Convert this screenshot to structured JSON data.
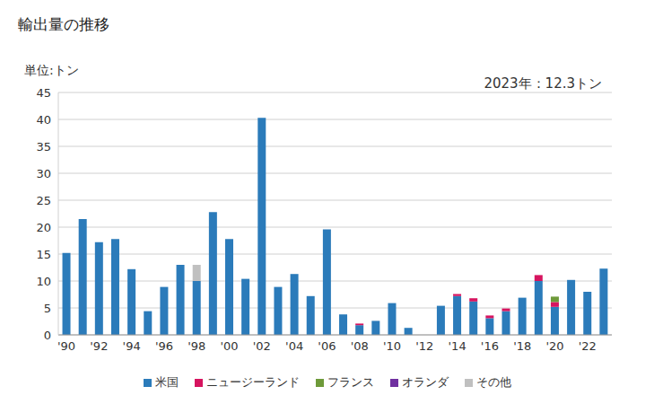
{
  "chart_data": {
    "type": "bar",
    "title": "輸出量の推移",
    "subtitle": "単位:トン",
    "annotation": "2023年：12.3トン",
    "stacked": true,
    "grid": true,
    "legend": "bottom",
    "categories": [
      "'90",
      null,
      "'92",
      null,
      "'94",
      null,
      "'96",
      null,
      "'98",
      null,
      "'00",
      null,
      "'02",
      null,
      "'04",
      null,
      "'06",
      null,
      "'08",
      null,
      "'10",
      null,
      "'12",
      null,
      "'14",
      null,
      "'16",
      null,
      "'18",
      null,
      "'20",
      null,
      "'22",
      null
    ],
    "series": [
      {
        "name": "米国",
        "color": "#2b7bba",
        "values": [
          15.2,
          21.5,
          17.2,
          17.8,
          12.2,
          4.4,
          8.9,
          13.0,
          10.0,
          22.8,
          17.8,
          10.4,
          40.3,
          8.9,
          11.3,
          7.2,
          19.6,
          3.8,
          1.8,
          2.6,
          5.9,
          1.3,
          0,
          5.4,
          7.2,
          6.2,
          3.1,
          4.4,
          6.9,
          10.0,
          5.2,
          10.2,
          8.0,
          12.3
        ]
      },
      {
        "name": "ニュージーランド",
        "color": "#d6145f",
        "values": [
          0,
          0,
          0,
          0,
          0,
          0,
          0,
          0,
          0,
          0,
          0,
          0,
          0,
          0,
          0,
          0,
          0,
          0,
          0.3,
          0,
          0,
          0,
          0,
          0,
          0.4,
          0.6,
          0.5,
          0.5,
          0,
          1.1,
          0.9,
          0,
          0,
          0
        ]
      },
      {
        "name": "フランス",
        "color": "#6e9a3a",
        "values": [
          0,
          0,
          0,
          0,
          0,
          0,
          0,
          0,
          0,
          0,
          0,
          0,
          0,
          0,
          0,
          0,
          0,
          0,
          0,
          0,
          0,
          0,
          0,
          0,
          0,
          0,
          0,
          0,
          0,
          0,
          1.0,
          0,
          0,
          0
        ]
      },
      {
        "name": "オランダ",
        "color": "#7030a0",
        "values": [
          0,
          0,
          0,
          0,
          0,
          0,
          0,
          0,
          0,
          0,
          0,
          0,
          0,
          0,
          0,
          0,
          0,
          0,
          0,
          0,
          0,
          0,
          0,
          0,
          0,
          0,
          0,
          0,
          0,
          0,
          0,
          0,
          0,
          0
        ]
      },
      {
        "name": "その他",
        "color": "#c0c0c0",
        "values": [
          0,
          0,
          0,
          0,
          0,
          0,
          0,
          0,
          3.0,
          0,
          0,
          0,
          0,
          0,
          0,
          0,
          0,
          0,
          0,
          0,
          0,
          0,
          0,
          0,
          0,
          0,
          0,
          0,
          0,
          0,
          0,
          0,
          0,
          0
        ]
      }
    ],
    "ylim": [
      0,
      45
    ],
    "yticks": [
      0,
      5,
      10,
      15,
      20,
      25,
      30,
      35,
      40,
      45
    ]
  }
}
